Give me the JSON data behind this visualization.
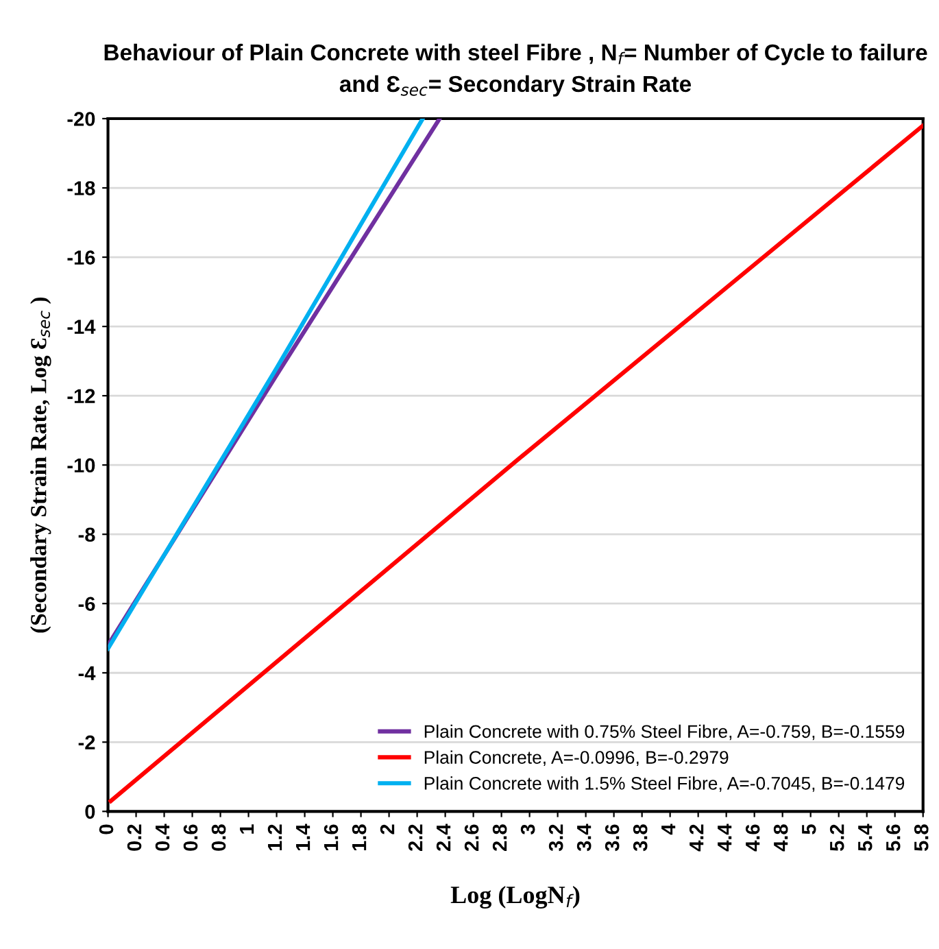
{
  "chart_data": {
    "type": "line",
    "title": "Behaviour of Plain Concrete with steel Fibre , N$_{f}$= Number of Cycle to failure\nand Ɛ$_{sec}$= Secondary Strain Rate",
    "xlabel": "Log (LogN$_{f}$)",
    "ylabel": "(Secondary Strain Rate, Log Ɛ$_{sec}$ )",
    "series": [
      {
        "name": "Plain Concrete with 0.75% Steel Fibre, A=-0.759, B=-0.1559",
        "color": "#7030a0",
        "x": [
          0,
          1.2,
          2.36
        ],
        "values": [
          -4.8,
          -12.6,
          -20
        ]
      },
      {
        "name": "Plain Concrete, A=-0.0996, B=-0.2979",
        "color": "#ff0000",
        "x": [
          0.02,
          2.9,
          5.8
        ],
        "values": [
          -0.3,
          -10.1,
          -19.8
        ]
      },
      {
        "name": "Plain Concrete with 1.5% Steel Fibre, A=-0.7045, B=-0.1479",
        "color": "#00b0f0",
        "x": [
          0,
          1.2,
          2.24
        ],
        "values": [
          -4.7,
          -12.8,
          -20
        ]
      }
    ],
    "xlim": [
      0,
      5.8
    ],
    "xticks": [
      0,
      0.2,
      0.4,
      0.6,
      0.8,
      1,
      1.2,
      1.4,
      1.6,
      1.8,
      2,
      2.2,
      2.4,
      2.6,
      2.8,
      3,
      3.2,
      3.4,
      3.6,
      3.8,
      4,
      4.2,
      4.4,
      4.6,
      4.8,
      5,
      5.2,
      5.4,
      5.6,
      5.8
    ],
    "ylim": [
      0,
      -20
    ],
    "yticks": [
      0,
      -2,
      -4,
      -6,
      -8,
      -10,
      -12,
      -14,
      -16,
      -18,
      -20
    ],
    "grid": "y",
    "legend": "bottom right",
    "marker": "none",
    "line_style": "solid"
  }
}
